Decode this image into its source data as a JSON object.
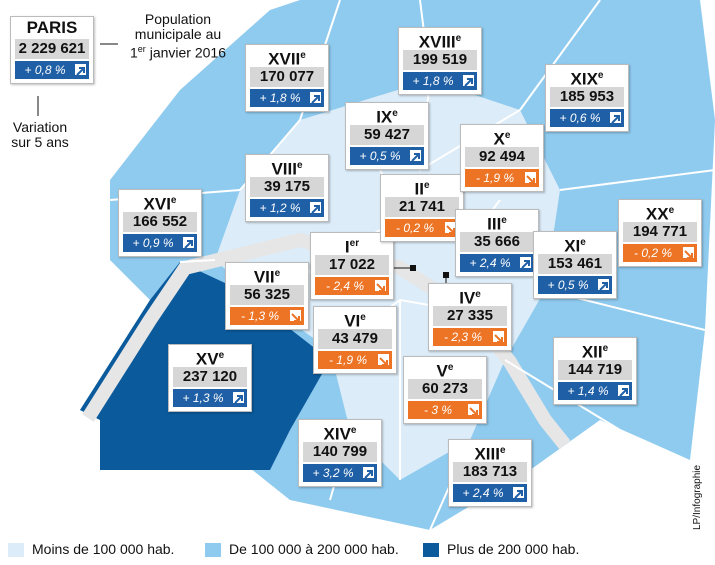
{
  "paris": {
    "label": "PARIS",
    "population": "2 229 621",
    "variation": "+ 0,8 %"
  },
  "annotations": {
    "population_lines": [
      "Population",
      "municipale au"
    ],
    "date_day": "1",
    "date_sup": "er",
    "date_rest": " janvier 2016",
    "variation_lines": [
      "Variation",
      "sur 5 ans"
    ]
  },
  "arrondissements": [
    {
      "name": "I",
      "sup": "er",
      "population": "17 022",
      "variation": "- 2,4 %",
      "trend": "down"
    },
    {
      "name": "II",
      "sup": "e",
      "population": "21 741",
      "variation": "- 0,2 %",
      "trend": "down"
    },
    {
      "name": "III",
      "sup": "e",
      "population": "35 666",
      "variation": "+ 2,4 %",
      "trend": "up"
    },
    {
      "name": "IV",
      "sup": "e",
      "population": "27 335",
      "variation": "- 2,3 %",
      "trend": "down"
    },
    {
      "name": "V",
      "sup": "e",
      "population": "60 273",
      "variation": "- 3 %",
      "trend": "down"
    },
    {
      "name": "VI",
      "sup": "e",
      "population": "43 479",
      "variation": "- 1,9 %",
      "trend": "down"
    },
    {
      "name": "VII",
      "sup": "e",
      "population": "56 325",
      "variation": "- 1,3 %",
      "trend": "down"
    },
    {
      "name": "VIII",
      "sup": "e",
      "population": "39 175",
      "variation": "+ 1,2 %",
      "trend": "up"
    },
    {
      "name": "IX",
      "sup": "e",
      "population": "59 427",
      "variation": "+ 0,5 %",
      "trend": "up"
    },
    {
      "name": "X",
      "sup": "e",
      "population": "92 494",
      "variation": "- 1,9 %",
      "trend": "down"
    },
    {
      "name": "XI",
      "sup": "e",
      "population": "153 461",
      "variation": "+ 0,5 %",
      "trend": "up"
    },
    {
      "name": "XII",
      "sup": "e",
      "population": "144 719",
      "variation": "+ 1,4 %",
      "trend": "up"
    },
    {
      "name": "XIII",
      "sup": "e",
      "population": "183 713",
      "variation": "+ 2,4 %",
      "trend": "up"
    },
    {
      "name": "XIV",
      "sup": "e",
      "population": "140 799",
      "variation": "+ 3,2 %",
      "trend": "up"
    },
    {
      "name": "XV",
      "sup": "e",
      "population": "237 120",
      "variation": "+ 1,3 %",
      "trend": "up"
    },
    {
      "name": "XVI",
      "sup": "e",
      "population": "166 552",
      "variation": "+ 0,9 %",
      "trend": "up"
    },
    {
      "name": "XVII",
      "sup": "e",
      "population": "170 077",
      "variation": "+ 1,8 %",
      "trend": "up"
    },
    {
      "name": "XVIII",
      "sup": "e",
      "population": "199 519",
      "variation": "+ 1,8 %",
      "trend": "up"
    },
    {
      "name": "XIX",
      "sup": "e",
      "population": "185 953",
      "variation": "+ 0,6 %",
      "trend": "up"
    },
    {
      "name": "XX",
      "sup": "e",
      "population": "194 771",
      "variation": "- 0,2 %",
      "trend": "down"
    }
  ],
  "legend": [
    {
      "label": "Moins de 100 000 hab.",
      "color": "#dcecf8"
    },
    {
      "label": "De 100 000 à 200 000 hab.",
      "color": "#8fcbef"
    },
    {
      "label": "Plus de 200 000 hab.",
      "color": "#0a5a9c"
    }
  ],
  "credit": "LP/Infographie"
}
